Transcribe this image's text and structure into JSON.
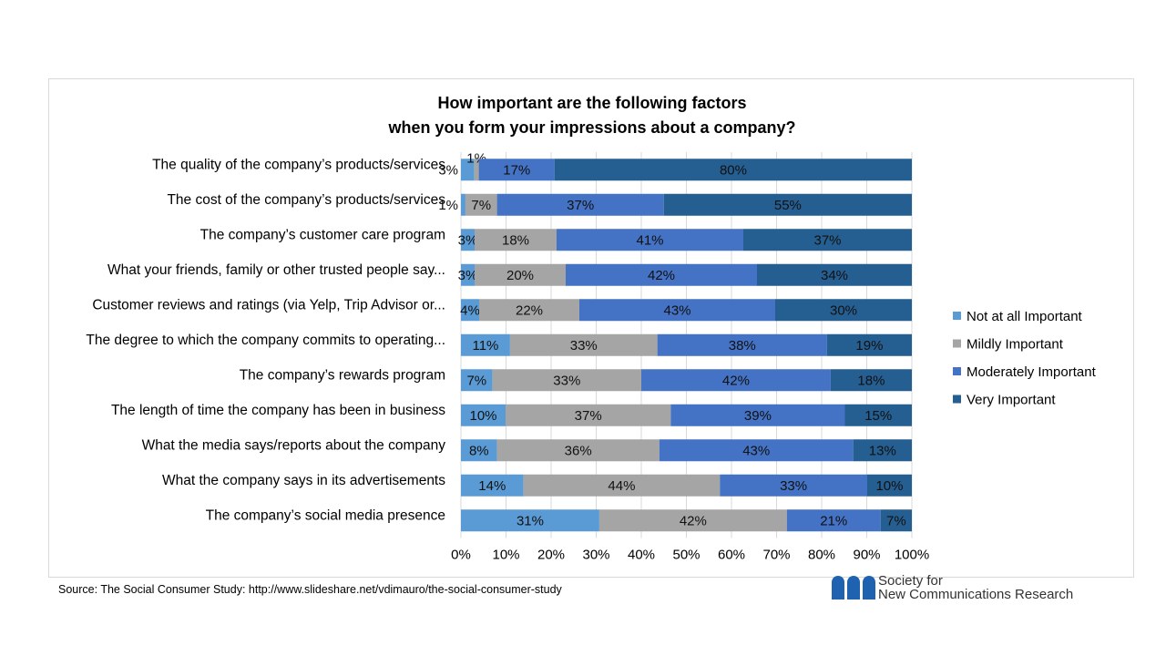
{
  "chart_data": {
    "type": "bar",
    "orientation": "horizontal",
    "stacked": "percent",
    "title": "How important are the following factors when you form your impressions about a company?",
    "title_lines": [
      "How important are the following  factors",
      "when you form your impressions about a company?"
    ],
    "categories": [
      "The quality of the company’s products/services",
      "The cost of the company’s products/services",
      "The company’s customer care program",
      "What your friends, family or other trusted people say...",
      "Customer reviews and ratings (via Yelp, Trip Advisor or...",
      "The degree to which the company commits to operating...",
      "The company’s rewards program",
      "The length of time the company has been in business",
      "What the media says/reports about the company",
      "What the company says in its  advertisements",
      "The company’s social media presence"
    ],
    "series": [
      {
        "name": "Not at all Important",
        "color": "#5b9bd5",
        "values": [
          3,
          1,
          3,
          3,
          4,
          11,
          7,
          10,
          8,
          14,
          31
        ]
      },
      {
        "name": "Mildly Important",
        "color": "#a5a5a5",
        "values": [
          1,
          7,
          18,
          20,
          22,
          33,
          33,
          37,
          36,
          44,
          42
        ]
      },
      {
        "name": "Moderately Important",
        "color": "#4472c4",
        "values": [
          17,
          37,
          41,
          42,
          43,
          38,
          42,
          39,
          43,
          33,
          21
        ]
      },
      {
        "name": "Very Important",
        "color": "#255e91",
        "values": [
          80,
          55,
          37,
          34,
          30,
          19,
          18,
          15,
          13,
          10,
          7
        ]
      }
    ],
    "xticks": [
      "0%",
      "10%",
      "20%",
      "30%",
      "40%",
      "50%",
      "60%",
      "70%",
      "80%",
      "90%",
      "100%"
    ],
    "xlim": [
      0,
      100
    ],
    "grid": true,
    "legend_position": "right"
  },
  "source": "Source: The Social Consumer Study: http://www.slideshare.net/vdimauro/the-social-consumer-study",
  "logo": {
    "line1": "Society for",
    "line2": "New Communications Research"
  }
}
